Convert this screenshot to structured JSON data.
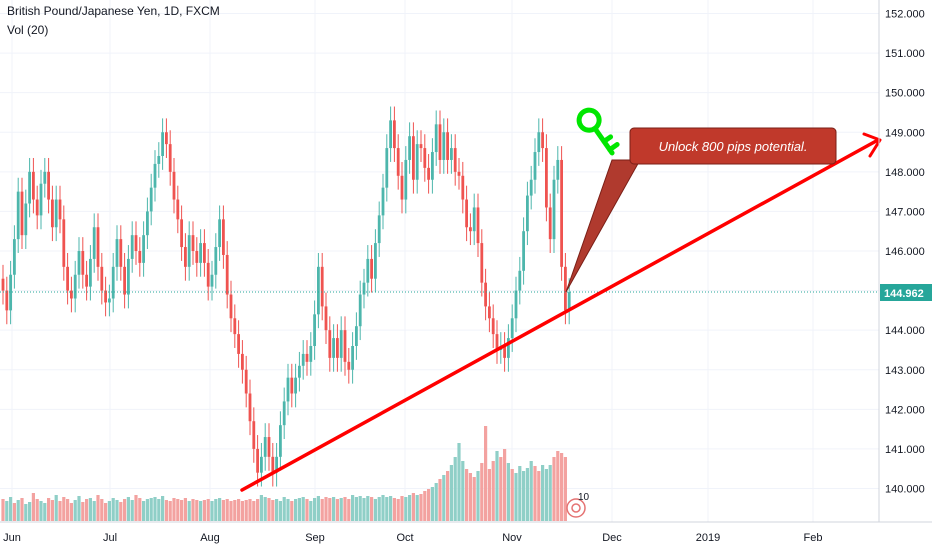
{
  "header": {
    "symbol_line": "British Pound/Japanese Yen, 1D, FXCM",
    "volume_label": "Vol (20)"
  },
  "annotation": {
    "text": "Unlock 800 pips potential.",
    "icon": "key-icon"
  },
  "badge_number": "10",
  "colors": {
    "up": "#4db6ac",
    "down": "#ef5350",
    "vol_up": "#8fcfc7",
    "vol_down": "#f3a2a0",
    "trendline": "#ff0000",
    "callout_fill": "#c0392b",
    "key": "#00e600",
    "last_price": "#26a69a"
  },
  "chart_data": {
    "type": "candlestick",
    "title": "British Pound/Japanese Yen, 1D, FXCM",
    "xlabel": "",
    "ylabel": "",
    "x_ticks": [
      "Jun",
      "Jul",
      "Aug",
      "Sep",
      "Oct",
      "Nov",
      "Dec",
      "2019",
      "Feb"
    ],
    "y_ticks": [
      "140.000",
      "141.000",
      "142.000",
      "143.000",
      "144.000",
      "145.000",
      "146.000",
      "147.000",
      "148.000",
      "149.000",
      "150.000",
      "151.000",
      "152.000"
    ],
    "ylim": [
      139.3,
      152.3
    ],
    "last_price": "144.962",
    "series": [
      {
        "name": "Price",
        "closes": [
          145.0,
          144.5,
          145.4,
          146.3,
          147.5,
          146.4,
          147.2,
          148.0,
          147.3,
          146.9,
          147.7,
          148.0,
          147.3,
          146.6,
          147.3,
          146.8,
          145.6,
          145.0,
          144.8,
          145.4,
          146.0,
          145.4,
          145.1,
          145.8,
          146.6,
          145.6,
          145.0,
          144.7,
          144.8,
          145.6,
          146.3,
          145.6,
          144.9,
          145.8,
          146.4,
          146.0,
          145.7,
          146.4,
          147.0,
          147.6,
          148.2,
          148.4,
          149.0,
          148.7,
          148.0,
          147.3,
          146.8,
          146.1,
          145.6,
          146.4,
          146.0,
          145.7,
          146.2,
          145.7,
          145.1,
          145.4,
          146.1,
          146.8,
          145.9,
          144.9,
          144.3,
          143.9,
          143.4,
          143.0,
          142.4,
          141.7,
          141.0,
          140.4,
          140.8,
          141.3,
          140.8,
          140.4,
          140.8,
          141.6,
          142.2,
          142.8,
          142.4,
          142.8,
          143.1,
          143.4,
          143.2,
          143.6,
          144.4,
          145.6,
          144.6,
          144.0,
          143.3,
          143.8,
          143.3,
          144.0,
          143.2,
          143.0,
          143.6,
          144.1,
          144.9,
          145.2,
          145.8,
          145.3,
          146.2,
          146.9,
          147.6,
          148.6,
          149.3,
          148.6,
          147.9,
          147.3,
          148.3,
          148.9,
          147.8,
          148.7,
          148.6,
          148.1,
          147.8,
          148.5,
          149.2,
          148.3,
          149.0,
          148.3,
          148.6,
          148.0,
          147.9,
          147.3,
          146.6,
          146.5,
          147.1,
          146.2,
          145.2,
          144.6,
          144.3,
          143.9,
          143.5,
          143.6,
          143.3,
          143.8,
          144.3,
          145.0,
          145.5,
          146.5,
          147.4,
          147.8,
          148.5,
          149.0,
          148.6,
          147.1,
          146.3,
          147.8,
          148.3,
          145.6,
          144.5,
          144.962
        ],
        "volumes": [
          {
            "v": 62,
            "d": "down"
          },
          {
            "v": 60,
            "d": "up"
          },
          {
            "v": 64,
            "d": "up"
          },
          {
            "v": 58,
            "d": "down"
          },
          {
            "v": 61,
            "d": "up"
          },
          {
            "v": 63,
            "d": "down"
          },
          {
            "v": 57,
            "d": "up"
          },
          {
            "v": 59,
            "d": "up"
          },
          {
            "v": 68,
            "d": "down"
          },
          {
            "v": 62,
            "d": "down"
          },
          {
            "v": 60,
            "d": "up"
          },
          {
            "v": 58,
            "d": "up"
          },
          {
            "v": 63,
            "d": "down"
          },
          {
            "v": 61,
            "d": "down"
          },
          {
            "v": 66,
            "d": "up"
          },
          {
            "v": 60,
            "d": "down"
          },
          {
            "v": 64,
            "d": "down"
          },
          {
            "v": 62,
            "d": "down"
          },
          {
            "v": 58,
            "d": "down"
          },
          {
            "v": 61,
            "d": "up"
          },
          {
            "v": 65,
            "d": "up"
          },
          {
            "v": 59,
            "d": "down"
          },
          {
            "v": 62,
            "d": "down"
          },
          {
            "v": 63,
            "d": "up"
          },
          {
            "v": 60,
            "d": "up"
          },
          {
            "v": 66,
            "d": "down"
          },
          {
            "v": 62,
            "d": "down"
          },
          {
            "v": 58,
            "d": "down"
          },
          {
            "v": 60,
            "d": "up"
          },
          {
            "v": 63,
            "d": "up"
          },
          {
            "v": 61,
            "d": "up"
          },
          {
            "v": 59,
            "d": "down"
          },
          {
            "v": 62,
            "d": "down"
          },
          {
            "v": 64,
            "d": "up"
          },
          {
            "v": 61,
            "d": "up"
          },
          {
            "v": 66,
            "d": "down"
          },
          {
            "v": 63,
            "d": "down"
          },
          {
            "v": 60,
            "d": "up"
          },
          {
            "v": 62,
            "d": "up"
          },
          {
            "v": 63,
            "d": "up"
          },
          {
            "v": 64,
            "d": "up"
          },
          {
            "v": 62,
            "d": "up"
          },
          {
            "v": 65,
            "d": "up"
          },
          {
            "v": 61,
            "d": "down"
          },
          {
            "v": 60,
            "d": "down"
          },
          {
            "v": 63,
            "d": "down"
          },
          {
            "v": 62,
            "d": "down"
          },
          {
            "v": 61,
            "d": "down"
          },
          {
            "v": 63,
            "d": "down"
          },
          {
            "v": 60,
            "d": "up"
          },
          {
            "v": 62,
            "d": "down"
          },
          {
            "v": 61,
            "d": "down"
          },
          {
            "v": 60,
            "d": "up"
          },
          {
            "v": 61,
            "d": "down"
          },
          {
            "v": 62,
            "d": "down"
          },
          {
            "v": 60,
            "d": "up"
          },
          {
            "v": 62,
            "d": "up"
          },
          {
            "v": 63,
            "d": "up"
          },
          {
            "v": 61,
            "d": "down"
          },
          {
            "v": 62,
            "d": "down"
          },
          {
            "v": 60,
            "d": "down"
          },
          {
            "v": 61,
            "d": "down"
          },
          {
            "v": 62,
            "d": "down"
          },
          {
            "v": 60,
            "d": "down"
          },
          {
            "v": 61,
            "d": "down"
          },
          {
            "v": 62,
            "d": "down"
          },
          {
            "v": 60,
            "d": "down"
          },
          {
            "v": 62,
            "d": "down"
          },
          {
            "v": 66,
            "d": "up"
          },
          {
            "v": 64,
            "d": "up"
          },
          {
            "v": 63,
            "d": "down"
          },
          {
            "v": 61,
            "d": "down"
          },
          {
            "v": 62,
            "d": "up"
          },
          {
            "v": 60,
            "d": "up"
          },
          {
            "v": 64,
            "d": "up"
          },
          {
            "v": 62,
            "d": "up"
          },
          {
            "v": 60,
            "d": "down"
          },
          {
            "v": 62,
            "d": "up"
          },
          {
            "v": 63,
            "d": "up"
          },
          {
            "v": 64,
            "d": "up"
          },
          {
            "v": 62,
            "d": "down"
          },
          {
            "v": 60,
            "d": "up"
          },
          {
            "v": 63,
            "d": "up"
          },
          {
            "v": 65,
            "d": "up"
          },
          {
            "v": 62,
            "d": "down"
          },
          {
            "v": 64,
            "d": "down"
          },
          {
            "v": 63,
            "d": "down"
          },
          {
            "v": 64,
            "d": "up"
          },
          {
            "v": 62,
            "d": "down"
          },
          {
            "v": 63,
            "d": "up"
          },
          {
            "v": 64,
            "d": "down"
          },
          {
            "v": 62,
            "d": "down"
          },
          {
            "v": 66,
            "d": "up"
          },
          {
            "v": 64,
            "d": "up"
          },
          {
            "v": 65,
            "d": "up"
          },
          {
            "v": 63,
            "d": "up"
          },
          {
            "v": 65,
            "d": "up"
          },
          {
            "v": 64,
            "d": "down"
          },
          {
            "v": 62,
            "d": "up"
          },
          {
            "v": 64,
            "d": "up"
          },
          {
            "v": 66,
            "d": "up"
          },
          {
            "v": 64,
            "d": "up"
          },
          {
            "v": 65,
            "d": "up"
          },
          {
            "v": 63,
            "d": "down"
          },
          {
            "v": 62,
            "d": "down"
          },
          {
            "v": 65,
            "d": "down"
          },
          {
            "v": 64,
            "d": "up"
          },
          {
            "v": 66,
            "d": "up"
          },
          {
            "v": 68,
            "d": "down"
          },
          {
            "v": 66,
            "d": "up"
          },
          {
            "v": 67,
            "d": "down"
          },
          {
            "v": 70,
            "d": "down"
          },
          {
            "v": 72,
            "d": "down"
          },
          {
            "v": 74,
            "d": "up"
          },
          {
            "v": 78,
            "d": "up"
          },
          {
            "v": 82,
            "d": "down"
          },
          {
            "v": 86,
            "d": "up"
          },
          {
            "v": 90,
            "d": "down"
          },
          {
            "v": 96,
            "d": "up"
          },
          {
            "v": 104,
            "d": "up"
          },
          {
            "v": 118,
            "d": "up"
          },
          {
            "v": 100,
            "d": "up"
          },
          {
            "v": 92,
            "d": "down"
          },
          {
            "v": 88,
            "d": "down"
          },
          {
            "v": 84,
            "d": "down"
          },
          {
            "v": 90,
            "d": "up"
          },
          {
            "v": 98,
            "d": "down"
          },
          {
            "v": 135,
            "d": "down"
          },
          {
            "v": 92,
            "d": "down"
          },
          {
            "v": 100,
            "d": "down"
          },
          {
            "v": 110,
            "d": "up"
          },
          {
            "v": 104,
            "d": "down"
          },
          {
            "v": 112,
            "d": "down"
          },
          {
            "v": 98,
            "d": "up"
          },
          {
            "v": 92,
            "d": "down"
          },
          {
            "v": 88,
            "d": "up"
          },
          {
            "v": 95,
            "d": "up"
          },
          {
            "v": 90,
            "d": "up"
          },
          {
            "v": 93,
            "d": "up"
          },
          {
            "v": 100,
            "d": "up"
          },
          {
            "v": 95,
            "d": "down"
          },
          {
            "v": 90,
            "d": "down"
          },
          {
            "v": 96,
            "d": "up"
          },
          {
            "v": 92,
            "d": "up"
          },
          {
            "v": 96,
            "d": "up"
          },
          {
            "v": 104,
            "d": "down"
          },
          {
            "v": 110,
            "d": "down"
          },
          {
            "v": 108,
            "d": "down"
          },
          {
            "v": 104,
            "d": "down"
          }
        ]
      }
    ]
  }
}
